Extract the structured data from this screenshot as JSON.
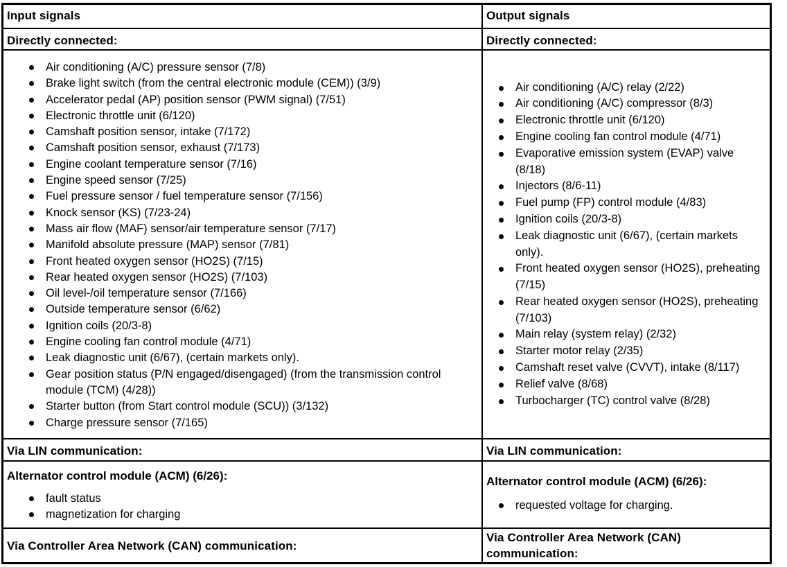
{
  "colors": {
    "text": "#000000",
    "background": "#ffffff",
    "border": "#000000"
  },
  "table": {
    "header": {
      "input_label": "Input signals",
      "output_label": "Output signals"
    },
    "directly_connected": {
      "input_label": "Directly connected:",
      "output_label": "Directly connected:"
    },
    "input_direct_items": [
      "Air conditioning (A/C) pressure sensor (7/8)",
      "Brake light switch (from the central electronic module (CEM)) (3/9)",
      "Accelerator pedal (AP) position sensor (PWM signal) (7/51)",
      "Electronic throttle unit (6/120)",
      "Camshaft position sensor, intake (7/172)",
      "Camshaft position sensor, exhaust (7/173)",
      "Engine coolant temperature sensor (7/16)",
      "Engine speed sensor (7/25)",
      "Fuel pressure sensor / fuel temperature sensor (7/156)",
      "Knock sensor (KS) (7/23-24)",
      "Mass air flow (MAF) sensor/air temperature sensor (7/17)",
      "Manifold absolute pressure (MAP) sensor (7/81)",
      "Front heated oxygen sensor (HO2S) (7/15)",
      "Rear heated oxygen sensor (HO2S) (7/103)",
      "Oil level-/oil temperature sensor (7/166)",
      "Outside temperature sensor (6/62)",
      "Ignition coils (20/3-8)",
      "Engine cooling fan control module (4/71)",
      "Leak diagnostic unit (6/67), (certain markets only).",
      "Gear position status (P/N engaged/disengaged) (from the transmission control module (TCM) (4/28))",
      "Starter button (from Start control module (SCU)) (3/132)",
      "Charge pressure sensor (7/165)"
    ],
    "output_direct_items": [
      "Air conditioning (A/C) relay (2/22)",
      "Air conditioning (A/C) compressor (8/3)",
      "Electronic throttle unit (6/120)",
      "Engine cooling fan control module (4/71)",
      "Evaporative emission system (EVAP) valve (8/18)",
      "Injectors (8/6-11)",
      "Fuel pump (FP) control module (4/83)",
      "Ignition coils (20/3-8)",
      "Leak diagnostic unit (6/67), (certain markets only).",
      "Front heated oxygen sensor (HO2S), preheating (7/15)",
      "Rear heated oxygen sensor (HO2S), preheating (7/103)",
      "Main relay (system relay) (2/32)",
      "Starter motor relay (2/35)",
      "Camshaft reset valve (CVVT), intake (8/117)",
      "Relief valve (8/68)",
      "Turbocharger (TC) control valve (8/28)"
    ],
    "via_lin": {
      "input_label": "Via LIN communication:",
      "output_label": "Via LIN communication:"
    },
    "acm": {
      "input_heading": "Alternator control module (ACM) (6/26):",
      "input_items": [
        "fault status",
        "magnetization for charging"
      ],
      "output_heading": "Alternator control module (ACM) (6/26):",
      "output_items": [
        "requested voltage for charging."
      ]
    },
    "via_can": {
      "input_label": "Via Controller Area Network (CAN) communication:",
      "output_label": "Via Controller Area Network (CAN) communication:"
    }
  }
}
